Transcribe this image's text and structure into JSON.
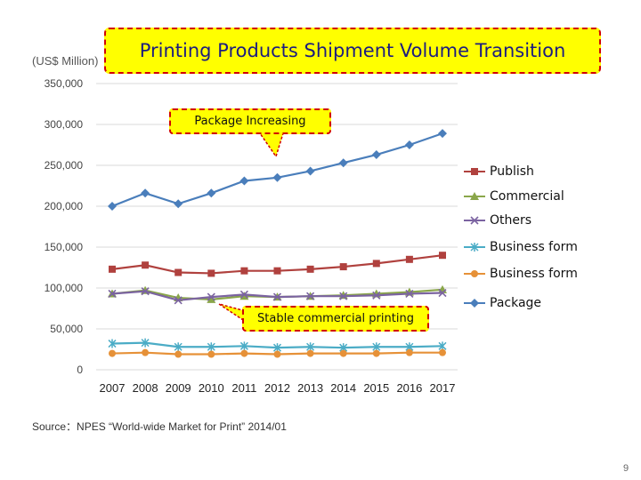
{
  "title": "Printing Products Shipment Volume Transition",
  "unit_label": "(US$ Million)",
  "callouts": {
    "top": "Package Increasing",
    "bottom": "Stable commercial printing"
  },
  "source_text": "Source：NPES “World-wide Market for Print”   2014/01",
  "page_number": "9",
  "chart_data": {
    "type": "line",
    "title": "Printing Products Shipment Volume Transition",
    "xlabel": "",
    "ylabel": "(US$ Million)",
    "categories": [
      "2007",
      "2008",
      "2009",
      "2010",
      "2011",
      "2012",
      "2013",
      "2014",
      "2015",
      "2016",
      "2017"
    ],
    "ylim": [
      0,
      350000
    ],
    "yticks": [
      0,
      50000,
      100000,
      150000,
      200000,
      250000,
      300000,
      350000
    ],
    "ytick_labels": [
      "0",
      "50,000",
      "100,000",
      "150,000",
      "200,000",
      "250,000",
      "300,000",
      "350,000"
    ],
    "grid": true,
    "legend_position": "right",
    "series": [
      {
        "name": "Publish",
        "color": "#b0413e",
        "marker": "square",
        "values": [
          123000,
          128000,
          119000,
          118000,
          121000,
          121000,
          123000,
          126000,
          130000,
          135000,
          140000
        ]
      },
      {
        "name": "Commercial",
        "color": "#8aa64a",
        "marker": "triangle",
        "values": [
          93000,
          97000,
          88000,
          86000,
          90000,
          89000,
          90000,
          91000,
          93000,
          95000,
          98000
        ]
      },
      {
        "name": "Others",
        "color": "#7b63a1",
        "marker": "x",
        "values": [
          93000,
          96000,
          85000,
          89000,
          92000,
          89000,
          90000,
          90000,
          91000,
          93000,
          94000
        ]
      },
      {
        "name": "Business form",
        "color": "#4bacc6",
        "marker": "star",
        "values": [
          32000,
          33000,
          28000,
          28000,
          29000,
          27000,
          28000,
          27000,
          28000,
          28000,
          29000
        ]
      },
      {
        "name": "Business form",
        "color": "#e69138",
        "marker": "circle",
        "values": [
          20000,
          21000,
          19000,
          19000,
          20000,
          19000,
          20000,
          20000,
          20000,
          21000,
          21000
        ]
      },
      {
        "name": "Package",
        "color": "#4a7ebb",
        "marker": "diamond",
        "values": [
          200000,
          216000,
          203000,
          216000,
          231000,
          235000,
          243000,
          253000,
          263000,
          275000,
          289000
        ]
      }
    ]
  }
}
